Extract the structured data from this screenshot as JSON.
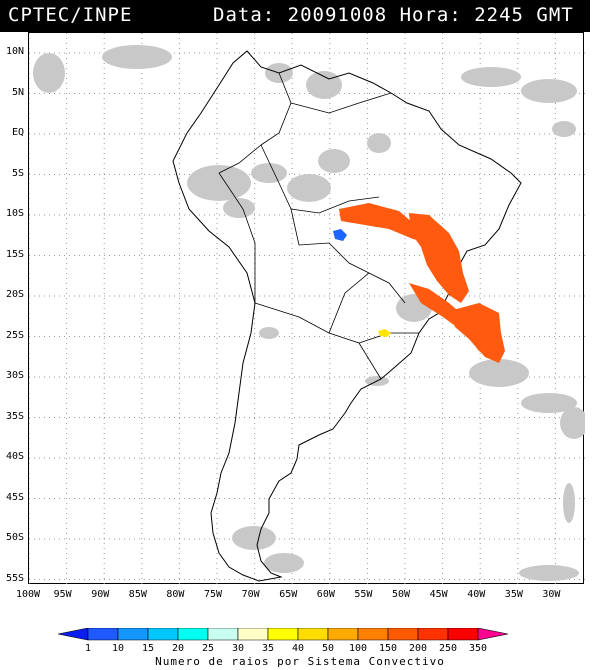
{
  "header": {
    "source": "CPTEC/INPE",
    "datetime": "Data: 20091008 Hora: 2245 GMT"
  },
  "map": {
    "lat_labels": [
      "10N",
      "5N",
      "EQ",
      "5S",
      "10S",
      "15S",
      "20S",
      "25S",
      "30S",
      "35S",
      "40S",
      "45S",
      "50S",
      "55S"
    ],
    "lon_labels": [
      "100W",
      "95W",
      "90W",
      "85W",
      "80W",
      "75W",
      "70W",
      "65W",
      "60W",
      "55W",
      "50W",
      "45W",
      "40W",
      "35W",
      "30W"
    ],
    "grid": "dotted",
    "cloud_color": "#c8c8c8",
    "colors": {
      "orange": "#ff5a10",
      "blue": "#1e64ff",
      "yellow": "#ffe400"
    }
  },
  "legend": {
    "title": "Numero de raios por Sistema Convectivo",
    "ticks": [
      "1",
      "10",
      "15",
      "20",
      "25",
      "30",
      "35",
      "40",
      "50",
      "100",
      "150",
      "200",
      "250",
      "350"
    ],
    "colors": [
      "#0a1ef0",
      "#1e5aff",
      "#1496ff",
      "#00c8ff",
      "#00fff0",
      "#c8fff0",
      "#ffffc8",
      "#ffff00",
      "#ffdc00",
      "#ffaa00",
      "#ff8000",
      "#ff5a00",
      "#ff3200",
      "#ff0000",
      "#ff0090"
    ]
  }
}
